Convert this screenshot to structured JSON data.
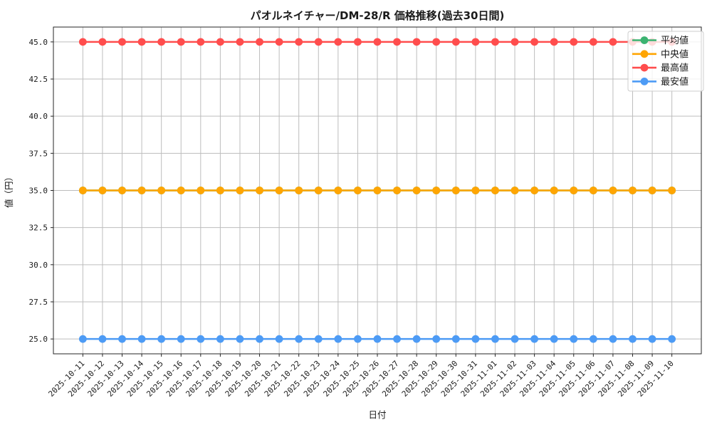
{
  "chart_data": {
    "type": "line",
    "title": "パオルネイチャー/DM-28/R 価格推移(過去30日間)",
    "xlabel": "日付",
    "ylabel": "値（円）",
    "x": [
      "2025-10-11",
      "2025-10-12",
      "2025-10-13",
      "2025-10-14",
      "2025-10-15",
      "2025-10-16",
      "2025-10-17",
      "2025-10-18",
      "2025-10-19",
      "2025-10-20",
      "2025-10-21",
      "2025-10-22",
      "2025-10-23",
      "2025-10-24",
      "2025-10-25",
      "2025-10-26",
      "2025-10-27",
      "2025-10-28",
      "2025-10-29",
      "2025-10-30",
      "2025-10-31",
      "2025-11-01",
      "2025-11-02",
      "2025-11-03",
      "2025-11-04",
      "2025-11-05",
      "2025-11-06",
      "2025-11-07",
      "2025-11-08",
      "2025-11-09",
      "2025-11-10"
    ],
    "series": [
      {
        "name": "平均値",
        "color": "#3cb371",
        "values": [
          35,
          35,
          35,
          35,
          35,
          35,
          35,
          35,
          35,
          35,
          35,
          35,
          35,
          35,
          35,
          35,
          35,
          35,
          35,
          35,
          35,
          35,
          35,
          35,
          35,
          35,
          35,
          35,
          35,
          35,
          35
        ]
      },
      {
        "name": "中央値",
        "color": "#ffa502",
        "values": [
          35,
          35,
          35,
          35,
          35,
          35,
          35,
          35,
          35,
          35,
          35,
          35,
          35,
          35,
          35,
          35,
          35,
          35,
          35,
          35,
          35,
          35,
          35,
          35,
          35,
          35,
          35,
          35,
          35,
          35,
          35
        ]
      },
      {
        "name": "最高値",
        "color": "#ff4d4d",
        "values": [
          45,
          45,
          45,
          45,
          45,
          45,
          45,
          45,
          45,
          45,
          45,
          45,
          45,
          45,
          45,
          45,
          45,
          45,
          45,
          45,
          45,
          45,
          45,
          45,
          45,
          45,
          45,
          45,
          45,
          45,
          45
        ]
      },
      {
        "name": "最安値",
        "color": "#4d9bf5",
        "values": [
          25,
          25,
          25,
          25,
          25,
          25,
          25,
          25,
          25,
          25,
          25,
          25,
          25,
          25,
          25,
          25,
          25,
          25,
          25,
          25,
          25,
          25,
          25,
          25,
          25,
          25,
          25,
          25,
          25,
          25,
          25
        ]
      }
    ],
    "ylim": [
      24,
      46
    ],
    "yticks": [
      25.0,
      27.5,
      30.0,
      32.5,
      35.0,
      37.5,
      40.0,
      42.5,
      45.0
    ],
    "grid": true,
    "legend_position": "upper right",
    "grid_color": "#bdbdbd",
    "spine_color": "#262626",
    "legend_border_color": "#cccccc"
  }
}
